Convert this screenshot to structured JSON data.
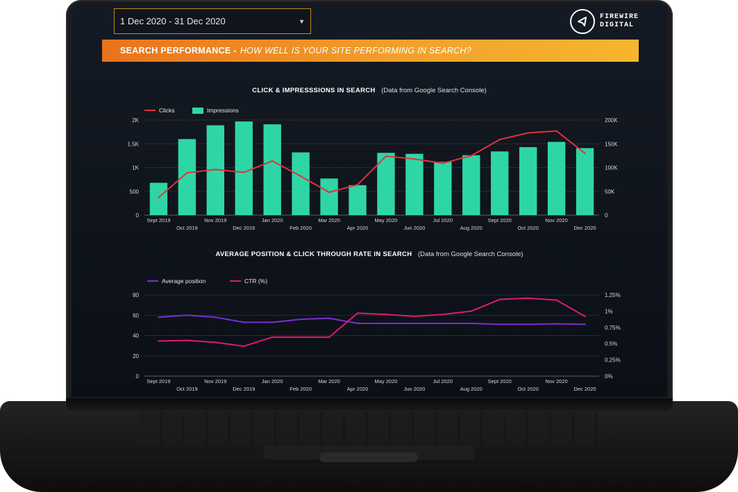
{
  "header": {
    "date_range": "1 Dec 2020 - 31 Dec 2020",
    "logo_line1": "FIREWIRE",
    "logo_line2": "DIGITAL"
  },
  "banner": {
    "bold": "SEARCH PERFORMANCE -",
    "italic": "HOW WELL IS YOUR SITE PERFORMING IN SEARCH?"
  },
  "colors": {
    "clicks": "#e0323c",
    "impressions": "#2fd6a5",
    "avg_position": "#7a2fd0",
    "ctr": "#e0187a",
    "accent": "#f2a02a"
  },
  "chart_data": [
    {
      "type": "bar",
      "title": "CLICK & IMPRESSSIONS IN SEARCH",
      "subtitle": "(Data from Google Search Console)",
      "legend_position": "top-left",
      "grid": true,
      "categories": [
        "Sept 2019",
        "Oct 2019",
        "Nov 2019",
        "Dec 2019",
        "Jan 2020",
        "Feb 2020",
        "Mar 2020",
        "Apr 2020",
        "May 2020",
        "Jun 2020",
        "Jul 2020",
        "Aug 2020",
        "Sept 2020",
        "Oct 2020",
        "Nov 2020",
        "Dec 2020"
      ],
      "left_ticks": [
        "0",
        "500",
        "1K",
        "1.5K",
        "2K"
      ],
      "right_ticks": [
        "0",
        "50K",
        "100K",
        "150K",
        "200K"
      ],
      "ylim_left": [
        0,
        2000
      ],
      "ylim_right": [
        0,
        200000
      ],
      "series": [
        {
          "name": "Clicks",
          "type": "line",
          "axis": "left",
          "values": [
            370,
            890,
            960,
            900,
            1140,
            820,
            480,
            640,
            1240,
            1180,
            1090,
            1250,
            1590,
            1730,
            1770,
            1300
          ]
        },
        {
          "name": "Impressions",
          "type": "bar",
          "axis": "right",
          "values": [
            68000,
            160000,
            189000,
            197000,
            191000,
            132000,
            77000,
            63000,
            131000,
            129000,
            112000,
            126000,
            134000,
            143000,
            154000,
            141000
          ]
        }
      ]
    },
    {
      "type": "line",
      "title": "AVERAGE POSITION & CLICK THROUGH RATE IN SEARCH",
      "subtitle": "(Data from Google Search Console)",
      "legend_position": "top-left",
      "grid": true,
      "categories": [
        "Sept 2019",
        "Oct 2019",
        "Nov 2019",
        "Dec 2019",
        "Jan 2020",
        "Feb 2020",
        "Mar 2020",
        "Apr 2020",
        "May 2020",
        "Jun 2020",
        "Jul 2020",
        "Aug 2020",
        "Sept 2020",
        "Oct 2020",
        "Nov 2020",
        "Dec 2020"
      ],
      "left_ticks": [
        "0",
        "20",
        "40",
        "60",
        "80"
      ],
      "right_ticks": [
        "0%",
        "0.25%",
        "0.5%",
        "0.75%",
        "1%",
        "1.25%"
      ],
      "ylim_left": [
        0,
        80
      ],
      "ylim_right": [
        0,
        1.25
      ],
      "series": [
        {
          "name": "Average position",
          "axis": "left",
          "values": [
            58,
            60,
            58,
            53,
            53,
            56,
            57,
            52,
            52,
            52,
            52,
            52,
            51,
            51,
            51.5,
            51
          ]
        },
        {
          "name": "CTR (%)",
          "axis": "right",
          "values": [
            0.54,
            0.55,
            0.52,
            0.46,
            0.6,
            0.6,
            0.6,
            0.97,
            0.95,
            0.92,
            0.95,
            1.0,
            1.18,
            1.2,
            1.17,
            0.92
          ]
        }
      ]
    }
  ]
}
